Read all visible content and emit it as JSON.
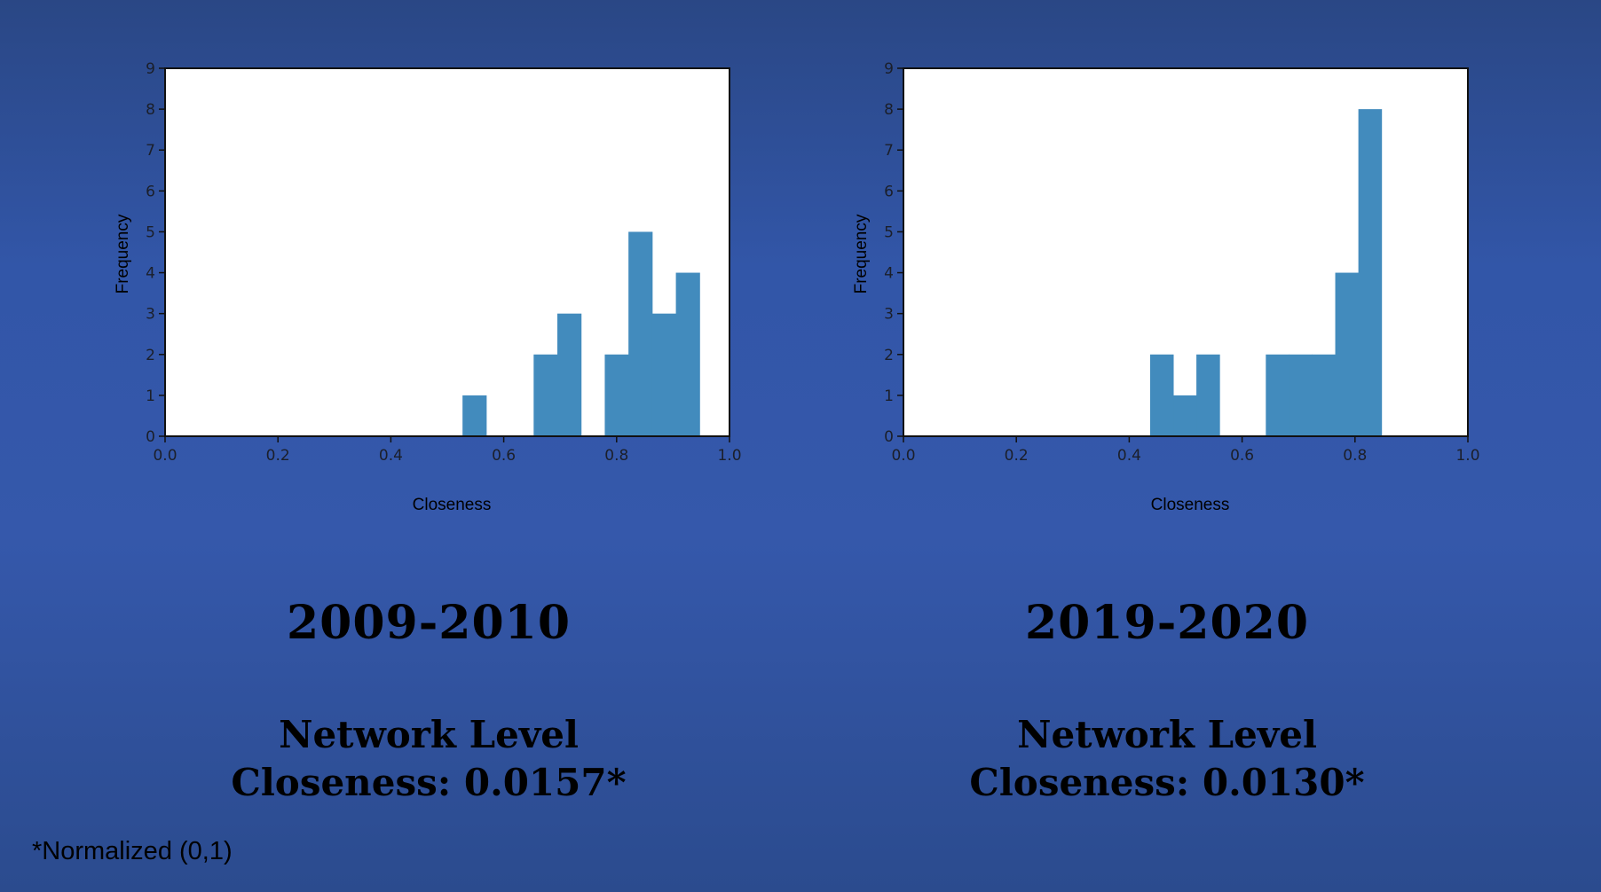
{
  "chart_data": [
    {
      "type": "bar",
      "xlabel": "Closeness",
      "ylabel": "Frequency",
      "xlim": [
        0.0,
        1.0
      ],
      "ylim": [
        0,
        9
      ],
      "xticks": [
        "0.0",
        "0.2",
        "0.4",
        "0.6",
        "0.8",
        "1.0"
      ],
      "yticks": [
        "0",
        "1",
        "2",
        "3",
        "4",
        "5",
        "6",
        "7",
        "8",
        "9"
      ],
      "color": "#428bbd",
      "bins": [
        {
          "x0": 0.527,
          "x1": 0.569,
          "value": 1
        },
        {
          "x0": 0.653,
          "x1": 0.695,
          "value": 2
        },
        {
          "x0": 0.695,
          "x1": 0.737,
          "value": 3
        },
        {
          "x0": 0.779,
          "x1": 0.821,
          "value": 2
        },
        {
          "x0": 0.821,
          "x1": 0.863,
          "value": 5
        },
        {
          "x0": 0.863,
          "x1": 0.905,
          "value": 3
        },
        {
          "x0": 0.905,
          "x1": 0.947,
          "value": 4
        }
      ]
    },
    {
      "type": "bar",
      "xlabel": "Closeness",
      "ylabel": "Frequency",
      "xlim": [
        0.0,
        1.0
      ],
      "ylim": [
        0,
        9
      ],
      "xticks": [
        "0.0",
        "0.2",
        "0.4",
        "0.6",
        "0.8",
        "1.0"
      ],
      "yticks": [
        "0",
        "1",
        "2",
        "3",
        "4",
        "5",
        "6",
        "7",
        "8",
        "9"
      ],
      "color": "#428bbd",
      "bins": [
        {
          "x0": 0.437,
          "x1": 0.478,
          "value": 2
        },
        {
          "x0": 0.478,
          "x1": 0.519,
          "value": 1
        },
        {
          "x0": 0.519,
          "x1": 0.56,
          "value": 2
        },
        {
          "x0": 0.642,
          "x1": 0.683,
          "value": 2
        },
        {
          "x0": 0.683,
          "x1": 0.724,
          "value": 2
        },
        {
          "x0": 0.724,
          "x1": 0.765,
          "value": 2
        },
        {
          "x0": 0.765,
          "x1": 0.806,
          "value": 4
        },
        {
          "x0": 0.806,
          "x1": 0.847,
          "value": 8
        }
      ]
    }
  ],
  "panels": [
    {
      "period": "2009-2010",
      "metric_line1": "Network Level",
      "metric_line2": "Closeness: 0.0157*"
    },
    {
      "period": "2019-2020",
      "metric_line1": "Network Level",
      "metric_line2": "Closeness: 0.0130*"
    }
  ],
  "footnote": "*Normalized (0,1)"
}
